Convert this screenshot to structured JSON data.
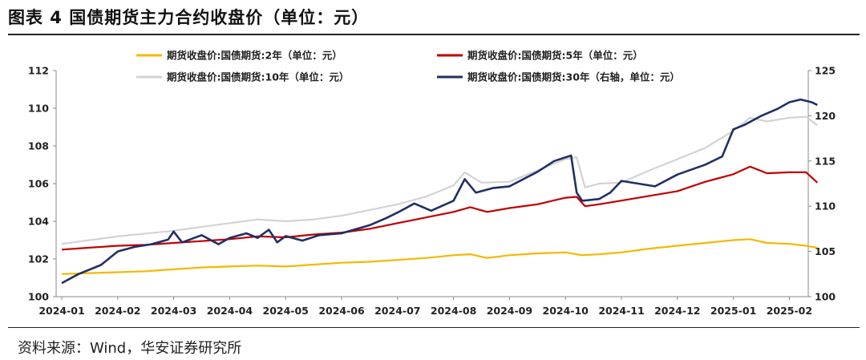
{
  "title": "图表 4  国债期货主力合约收盘价（单位：元）",
  "source": "资料来源：Wind，华安证券研究所",
  "chart_data": {
    "type": "line",
    "title": "图表 4  国债期货主力合约收盘价（单位：元）",
    "x_tick_labels": [
      "2024-01",
      "2024-02",
      "2024-03",
      "2024-04",
      "2024-05",
      "2024-06",
      "2024-07",
      "2024-08",
      "2024-09",
      "2024-10",
      "2024-11",
      "2024-12",
      "2025-01",
      "2025-02"
    ],
    "y_left": {
      "ticks": [
        100,
        102,
        104,
        106,
        108,
        110,
        112
      ],
      "range": [
        100,
        112
      ]
    },
    "y_right": {
      "ticks": [
        100,
        105,
        110,
        115,
        120,
        125
      ],
      "range": [
        100,
        125
      ]
    },
    "grid": false,
    "legend_position": "top",
    "series": [
      {
        "name": "期货收盘价:国债期货:2年（单位：元）",
        "axis": "left",
        "color": "#F5B800",
        "points": [
          [
            0,
            101.2
          ],
          [
            0.5,
            101.25
          ],
          [
            1,
            101.3
          ],
          [
            1.5,
            101.35
          ],
          [
            2,
            101.45
          ],
          [
            2.5,
            101.55
          ],
          [
            3,
            101.6
          ],
          [
            3.5,
            101.65
          ],
          [
            4,
            101.6
          ],
          [
            4.5,
            101.7
          ],
          [
            5,
            101.8
          ],
          [
            5.5,
            101.85
          ],
          [
            6,
            101.95
          ],
          [
            6.5,
            102.05
          ],
          [
            7,
            102.2
          ],
          [
            7.3,
            102.25
          ],
          [
            7.6,
            102.05
          ],
          [
            8,
            102.2
          ],
          [
            8.5,
            102.3
          ],
          [
            9,
            102.35
          ],
          [
            9.3,
            102.2
          ],
          [
            9.6,
            102.25
          ],
          [
            10,
            102.35
          ],
          [
            10.5,
            102.55
          ],
          [
            11,
            102.7
          ],
          [
            11.5,
            102.85
          ],
          [
            12,
            103.0
          ],
          [
            12.3,
            103.05
          ],
          [
            12.6,
            102.85
          ],
          [
            13,
            102.8
          ],
          [
            13.3,
            102.7
          ],
          [
            13.5,
            102.6
          ]
        ]
      },
      {
        "name": "期货收盘价:国债期货:5年（单位：元）",
        "axis": "left",
        "color": "#C00000",
        "points": [
          [
            0,
            102.5
          ],
          [
            0.5,
            102.6
          ],
          [
            1,
            102.7
          ],
          [
            1.5,
            102.75
          ],
          [
            2,
            102.85
          ],
          [
            2.5,
            102.95
          ],
          [
            3,
            103.05
          ],
          [
            3.5,
            103.2
          ],
          [
            4,
            103.15
          ],
          [
            4.5,
            103.3
          ],
          [
            5,
            103.4
          ],
          [
            5.5,
            103.6
          ],
          [
            6,
            103.9
          ],
          [
            6.5,
            104.2
          ],
          [
            7,
            104.5
          ],
          [
            7.3,
            104.75
          ],
          [
            7.6,
            104.5
          ],
          [
            8,
            104.7
          ],
          [
            8.5,
            104.9
          ],
          [
            9,
            105.25
          ],
          [
            9.2,
            105.3
          ],
          [
            9.35,
            104.8
          ],
          [
            9.6,
            104.9
          ],
          [
            10,
            105.1
          ],
          [
            10.5,
            105.35
          ],
          [
            11,
            105.6
          ],
          [
            11.5,
            106.1
          ],
          [
            12,
            106.5
          ],
          [
            12.3,
            106.9
          ],
          [
            12.6,
            106.55
          ],
          [
            13,
            106.6
          ],
          [
            13.3,
            106.6
          ],
          [
            13.5,
            106.05
          ]
        ]
      },
      {
        "name": "期货收盘价:国债期货:10年（单位：元）",
        "axis": "left",
        "color": "#D3D3D3",
        "points": [
          [
            0,
            102.8
          ],
          [
            0.5,
            103.0
          ],
          [
            1,
            103.2
          ],
          [
            1.5,
            103.35
          ],
          [
            2,
            103.5
          ],
          [
            2.5,
            103.7
          ],
          [
            3,
            103.9
          ],
          [
            3.5,
            104.1
          ],
          [
            4,
            104.0
          ],
          [
            4.5,
            104.1
          ],
          [
            5,
            104.3
          ],
          [
            5.5,
            104.6
          ],
          [
            6,
            104.9
          ],
          [
            6.5,
            105.3
          ],
          [
            7,
            105.9
          ],
          [
            7.2,
            106.6
          ],
          [
            7.5,
            106.05
          ],
          [
            8,
            106.1
          ],
          [
            8.5,
            106.7
          ],
          [
            9,
            107.3
          ],
          [
            9.2,
            107.4
          ],
          [
            9.35,
            105.8
          ],
          [
            9.6,
            106.0
          ],
          [
            10,
            106.05
          ],
          [
            10.5,
            106.7
          ],
          [
            11,
            107.3
          ],
          [
            11.5,
            107.9
          ],
          [
            12,
            108.8
          ],
          [
            12.3,
            109.5
          ],
          [
            12.6,
            109.3
          ],
          [
            13,
            109.5
          ],
          [
            13.3,
            109.55
          ],
          [
            13.5,
            109.1
          ]
        ]
      },
      {
        "name": "期货收盘价:国债期货:30年（右轴，单位：元）",
        "axis": "right",
        "color": "#1F3064",
        "points": [
          [
            0,
            101.5
          ],
          [
            0.3,
            102.5
          ],
          [
            0.7,
            103.5
          ],
          [
            1,
            105.0
          ],
          [
            1.3,
            105.5
          ],
          [
            1.6,
            105.8
          ],
          [
            1.9,
            106.3
          ],
          [
            2,
            107.2
          ],
          [
            2.15,
            106.0
          ],
          [
            2.5,
            106.8
          ],
          [
            2.8,
            105.8
          ],
          [
            3,
            106.5
          ],
          [
            3.3,
            107.0
          ],
          [
            3.5,
            106.5
          ],
          [
            3.7,
            107.4
          ],
          [
            3.85,
            106.0
          ],
          [
            4,
            106.7
          ],
          [
            4.3,
            106.2
          ],
          [
            4.6,
            106.8
          ],
          [
            5,
            107.0
          ],
          [
            5.5,
            107.9
          ],
          [
            5.8,
            108.7
          ],
          [
            6,
            109.3
          ],
          [
            6.3,
            110.3
          ],
          [
            6.6,
            109.5
          ],
          [
            7,
            110.6
          ],
          [
            7.2,
            113.0
          ],
          [
            7.4,
            111.5
          ],
          [
            7.7,
            112.0
          ],
          [
            8,
            112.2
          ],
          [
            8.5,
            113.8
          ],
          [
            8.8,
            115.0
          ],
          [
            9.1,
            115.6
          ],
          [
            9.2,
            111.5
          ],
          [
            9.3,
            110.6
          ],
          [
            9.6,
            110.8
          ],
          [
            9.8,
            111.5
          ],
          [
            10,
            112.8
          ],
          [
            10.3,
            112.5
          ],
          [
            10.6,
            112.2
          ],
          [
            11,
            113.5
          ],
          [
            11.5,
            114.6
          ],
          [
            11.8,
            115.5
          ],
          [
            12,
            118.5
          ],
          [
            12.2,
            119.0
          ],
          [
            12.5,
            120.0
          ],
          [
            12.8,
            120.8
          ],
          [
            13,
            121.5
          ],
          [
            13.2,
            121.8
          ],
          [
            13.4,
            121.5
          ],
          [
            13.5,
            121.2
          ]
        ]
      }
    ]
  }
}
